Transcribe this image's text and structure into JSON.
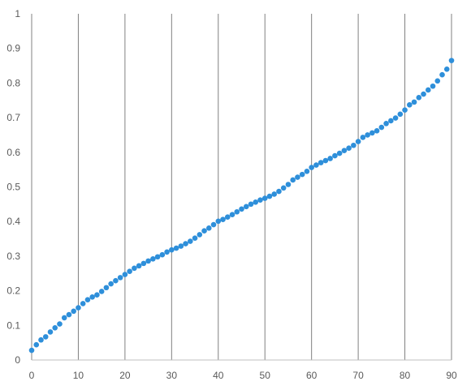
{
  "chart_data": {
    "type": "scatter",
    "title": "",
    "xlabel": "",
    "ylabel": "",
    "xlim": [
      0,
      90
    ],
    "ylim": [
      0,
      1
    ],
    "x_ticks": [
      "0",
      "10",
      "20",
      "30",
      "40",
      "50",
      "60",
      "70",
      "80",
      "90"
    ],
    "y_ticks": [
      "0",
      "0.1",
      "0.2",
      "0.3",
      "0.4",
      "0.5",
      "0.6",
      "0.7",
      "0.8",
      "0.9",
      "1"
    ],
    "grid": "vertical",
    "legend": "none",
    "marker_color": "#2E8FDA",
    "gridline_color": "#808080",
    "axis_color": "#BFBFBF",
    "series": [
      {
        "x": [
          0,
          1,
          2,
          3,
          4,
          5,
          6,
          7,
          8,
          9,
          10,
          11,
          12,
          13,
          14,
          15,
          16,
          17,
          18,
          19,
          20,
          21,
          22,
          23,
          24,
          25,
          26,
          27,
          28,
          29,
          30,
          31,
          32,
          33,
          34,
          35,
          36,
          37,
          38,
          39,
          40,
          41,
          42,
          43,
          44,
          45,
          46,
          47,
          48,
          49,
          50,
          51,
          52,
          53,
          54,
          55,
          56,
          57,
          58,
          59,
          60,
          61,
          62,
          63,
          64,
          65,
          66,
          67,
          68,
          69,
          70,
          71,
          72,
          73,
          74,
          75,
          76,
          77,
          78,
          79,
          80,
          81,
          82,
          83,
          84,
          85,
          86,
          87,
          88,
          89,
          90
        ],
        "y": [
          0.028,
          0.044,
          0.058,
          0.067,
          0.081,
          0.093,
          0.104,
          0.122,
          0.131,
          0.141,
          0.151,
          0.163,
          0.174,
          0.182,
          0.188,
          0.198,
          0.209,
          0.22,
          0.229,
          0.238,
          0.247,
          0.256,
          0.265,
          0.272,
          0.279,
          0.286,
          0.292,
          0.298,
          0.304,
          0.312,
          0.318,
          0.323,
          0.329,
          0.336,
          0.343,
          0.352,
          0.362,
          0.373,
          0.381,
          0.391,
          0.401,
          0.406,
          0.413,
          0.42,
          0.428,
          0.436,
          0.443,
          0.45,
          0.456,
          0.462,
          0.467,
          0.473,
          0.479,
          0.487,
          0.497,
          0.507,
          0.52,
          0.528,
          0.536,
          0.545,
          0.556,
          0.563,
          0.57,
          0.576,
          0.582,
          0.59,
          0.597,
          0.605,
          0.612,
          0.62,
          0.631,
          0.643,
          0.65,
          0.656,
          0.662,
          0.672,
          0.683,
          0.691,
          0.699,
          0.71,
          0.722,
          0.737,
          0.745,
          0.758,
          0.768,
          0.78,
          0.791,
          0.806,
          0.824,
          0.84,
          0.865
        ]
      }
    ]
  }
}
